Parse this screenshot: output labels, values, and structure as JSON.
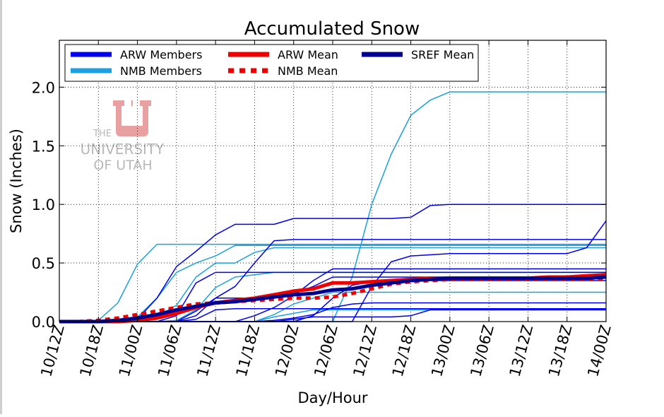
{
  "chart_data": {
    "type": "line",
    "title": "Accumulated Snow",
    "xlabel": "Day/Hour",
    "ylabel": "Snow (Inches)",
    "ylim": [
      0,
      2.4
    ],
    "yticks": [
      "0.0",
      "0.5",
      "1.0",
      "1.5",
      "2.0"
    ],
    "categories": [
      "10/12Z",
      "10/15Z",
      "10/18Z",
      "10/21Z",
      "11/00Z",
      "11/03Z",
      "11/06Z",
      "11/09Z",
      "11/12Z",
      "11/15Z",
      "11/18Z",
      "11/21Z",
      "12/00Z",
      "12/03Z",
      "12/06Z",
      "12/09Z",
      "12/12Z",
      "12/15Z",
      "12/18Z",
      "12/21Z",
      "13/00Z",
      "13/03Z",
      "13/06Z",
      "13/09Z",
      "13/12Z",
      "13/15Z",
      "13/18Z",
      "13/21Z",
      "14/00Z"
    ],
    "xtick_labels": [
      "10/12Z",
      "10/18Z",
      "11/00Z",
      "11/06Z",
      "11/12Z",
      "11/18Z",
      "12/00Z",
      "12/06Z",
      "12/12Z",
      "12/18Z",
      "13/00Z",
      "13/06Z",
      "13/12Z",
      "13/18Z",
      "14/00Z"
    ],
    "grid": true,
    "legend_position": "top-left",
    "colors": {
      "arw_member": "#0000ee",
      "nmb_member": "#1ba0e0",
      "arw_mean": "#ee0000",
      "nmb_mean": "#ee0000",
      "sref_mean": "#000090"
    },
    "legend": [
      {
        "label": "ARW Members",
        "style": "arw_member"
      },
      {
        "label": "ARW Mean",
        "style": "arw_mean"
      },
      {
        "label": "SREF Mean",
        "style": "sref_mean"
      },
      {
        "label": "NMB Members",
        "style": "nmb_member"
      },
      {
        "label": "NMB Mean",
        "style": "nmb_mean"
      }
    ],
    "series": [
      {
        "group": "nmb_member",
        "values": [
          0,
          0,
          0.01,
          0.16,
          0.49,
          0.66,
          0.66,
          0.66,
          0.66,
          0.66,
          0.66,
          0.66,
          0.66,
          0.66,
          0.66,
          0.66,
          0.66,
          0.66,
          0.66,
          0.66,
          0.66,
          0.66,
          0.66,
          0.66,
          0.66,
          0.66,
          0.66,
          0.66,
          0.66
        ]
      },
      {
        "group": "nmb_member",
        "values": [
          0,
          0,
          0,
          0,
          0.04,
          0.2,
          0.42,
          0.5,
          0.56,
          0.65,
          0.65,
          0.65,
          0.65,
          0.65,
          0.65,
          0.65,
          0.65,
          0.65,
          0.65,
          0.65,
          0.65,
          0.65,
          0.65,
          0.65,
          0.65,
          0.65,
          0.65,
          0.65,
          0.65
        ]
      },
      {
        "group": "nmb_member",
        "values": [
          0,
          0,
          0,
          0,
          0,
          0.04,
          0.14,
          0.38,
          0.5,
          0.5,
          0.59,
          0.63,
          0.63,
          0.63,
          0.63,
          0.63,
          0.63,
          0.63,
          0.63,
          0.63,
          0.63,
          0.63,
          0.63,
          0.63,
          0.63,
          0.63,
          0.63,
          0.63,
          0.63
        ]
      },
      {
        "group": "nmb_member",
        "values": [
          0,
          0,
          0,
          0,
          0,
          0,
          0,
          0,
          0,
          0,
          0,
          0,
          0,
          0,
          0,
          0.38,
          1.0,
          1.43,
          1.76,
          1.89,
          1.96,
          1.96,
          1.96,
          1.96,
          1.96,
          1.96,
          1.96,
          1.96,
          1.96
        ]
      },
      {
        "group": "nmb_member",
        "values": [
          0,
          0,
          0,
          0,
          0,
          0,
          0.01,
          0.1,
          0.29,
          0.38,
          0.4,
          0.42,
          0.42,
          0.42,
          0.42,
          0.42,
          0.42,
          0.42,
          0.42,
          0.42,
          0.42,
          0.42,
          0.42,
          0.42,
          0.42,
          0.42,
          0.42,
          0.42,
          0.42
        ]
      },
      {
        "group": "nmb_member",
        "values": [
          0,
          0,
          0,
          0,
          0,
          0,
          0,
          0,
          0,
          0,
          0,
          0.06,
          0.15,
          0.2,
          0.25,
          0.25,
          0.25,
          0.25,
          0.25,
          0.25,
          0.25,
          0.25,
          0.25,
          0.25,
          0.25,
          0.25,
          0.25,
          0.25,
          0.25
        ]
      },
      {
        "group": "nmb_member",
        "values": [
          0,
          0,
          0,
          0,
          0,
          0,
          0,
          0,
          0,
          0,
          0,
          0.04,
          0.07,
          0.1,
          0.1,
          0.1,
          0.1,
          0.1,
          0.1,
          0.1,
          0.1,
          0.1,
          0.1,
          0.1,
          0.1,
          0.1,
          0.1,
          0.1,
          0.1
        ]
      },
      {
        "group": "arw_member",
        "values": [
          0,
          0,
          0,
          0,
          0.02,
          0.2,
          0.47,
          0.6,
          0.74,
          0.83,
          0.83,
          0.83,
          0.88,
          0.88,
          0.88,
          0.88,
          0.88,
          0.88,
          0.89,
          0.99,
          1.0,
          1.0,
          1.0,
          1.0,
          1.0,
          1.0,
          1.0,
          1.0,
          1.0
        ]
      },
      {
        "group": "arw_member",
        "values": [
          0,
          0,
          0,
          0,
          0,
          0,
          0,
          0.05,
          0.2,
          0.3,
          0.5,
          0.69,
          0.7,
          0.7,
          0.7,
          0.7,
          0.7,
          0.7,
          0.7,
          0.7,
          0.7,
          0.7,
          0.7,
          0.7,
          0.7,
          0.7,
          0.7,
          0.7,
          0.7
        ]
      },
      {
        "group": "arw_member",
        "values": [
          0,
          0,
          0,
          0,
          0,
          0,
          0.05,
          0.33,
          0.42,
          0.42,
          0.42,
          0.42,
          0.42,
          0.42,
          0.42,
          0.42,
          0.42,
          0.42,
          0.42,
          0.42,
          0.42,
          0.42,
          0.42,
          0.42,
          0.42,
          0.42,
          0.42,
          0.42,
          0.42
        ]
      },
      {
        "group": "arw_member",
        "values": [
          0,
          0,
          0,
          0,
          0,
          0,
          0,
          0,
          0,
          0,
          0.05,
          0.12,
          0.22,
          0.35,
          0.45,
          0.45,
          0.45,
          0.45,
          0.45,
          0.45,
          0.45,
          0.45,
          0.45,
          0.45,
          0.45,
          0.45,
          0.45,
          0.45,
          0.45
        ]
      },
      {
        "group": "arw_member",
        "values": [
          0,
          0,
          0,
          0,
          0,
          0,
          0,
          0,
          0,
          0,
          0,
          0,
          0,
          0,
          0,
          0,
          0.3,
          0.51,
          0.56,
          0.57,
          0.58,
          0.58,
          0.58,
          0.58,
          0.58,
          0.58,
          0.58,
          0.63,
          0.86
        ]
      },
      {
        "group": "arw_member",
        "values": [
          0,
          0,
          0,
          0,
          0,
          0,
          0,
          0.09,
          0.2,
          0.2,
          0.2,
          0.2,
          0.24,
          0.3,
          0.38,
          0.38,
          0.38,
          0.38,
          0.38,
          0.38,
          0.38,
          0.38,
          0.38,
          0.38,
          0.38,
          0.38,
          0.38,
          0.38,
          0.38
        ]
      },
      {
        "group": "arw_member",
        "values": [
          0,
          0,
          0,
          0,
          0,
          0,
          0,
          0.02,
          0.1,
          0.11,
          0.11,
          0.11,
          0.11,
          0.11,
          0.11,
          0.11,
          0.11,
          0.11,
          0.11,
          0.11,
          0.11,
          0.11,
          0.11,
          0.11,
          0.11,
          0.11,
          0.11,
          0.11,
          0.11
        ]
      },
      {
        "group": "arw_member",
        "values": [
          0,
          0,
          0,
          0,
          0,
          0,
          0,
          0,
          0,
          0,
          0,
          0.01,
          0.03,
          0.06,
          0.12,
          0.15,
          0.16,
          0.16,
          0.16,
          0.16,
          0.16,
          0.16,
          0.16,
          0.16,
          0.16,
          0.16,
          0.16,
          0.16,
          0.16
        ]
      },
      {
        "group": "arw_member",
        "values": [
          0,
          0,
          0,
          0,
          0,
          0,
          0,
          0,
          0,
          0,
          0,
          0,
          0.02,
          0.04,
          0.04,
          0.04,
          0.04,
          0.04,
          0.05,
          0.1,
          0.1,
          0.1,
          0.1,
          0.1,
          0.1,
          0.1,
          0.1,
          0.1,
          0.1
        ]
      },
      {
        "group": "arw_member",
        "values": [
          0,
          0,
          0,
          0,
          0,
          0,
          0,
          0,
          0,
          0,
          0,
          0,
          0,
          0.05,
          0.2,
          0.31,
          0.34,
          0.35,
          0.35,
          0.35,
          0.35,
          0.35,
          0.35,
          0.35,
          0.35,
          0.35,
          0.35,
          0.35,
          0.35
        ]
      },
      {
        "group": "nmb_mean",
        "values": [
          0,
          0,
          0.01,
          0.03,
          0.06,
          0.09,
          0.12,
          0.15,
          0.16,
          0.17,
          0.18,
          0.19,
          0.2,
          0.2,
          0.21,
          0.24,
          0.28,
          0.32,
          0.34,
          0.35,
          0.36,
          0.36,
          0.36,
          0.36,
          0.36,
          0.36,
          0.36,
          0.36,
          0.36
        ]
      },
      {
        "group": "arw_mean",
        "values": [
          0,
          0,
          0,
          0,
          0.01,
          0.03,
          0.07,
          0.12,
          0.16,
          0.18,
          0.2,
          0.23,
          0.26,
          0.28,
          0.33,
          0.33,
          0.34,
          0.35,
          0.36,
          0.37,
          0.37,
          0.37,
          0.37,
          0.37,
          0.37,
          0.38,
          0.38,
          0.39,
          0.4
        ]
      },
      {
        "group": "sref_mean",
        "values": [
          0,
          0,
          0,
          0.01,
          0.03,
          0.06,
          0.1,
          0.13,
          0.16,
          0.17,
          0.19,
          0.21,
          0.23,
          0.24,
          0.27,
          0.28,
          0.31,
          0.33,
          0.35,
          0.36,
          0.37,
          0.37,
          0.37,
          0.37,
          0.37,
          0.37,
          0.37,
          0.37,
          0.38
        ]
      }
    ]
  },
  "watermark": {
    "line1": "THE",
    "line2": "UNIVERSITY",
    "line3": "OF UTAH",
    "logo_color": "#e8a0a0",
    "text_color": "#b8b8b8"
  }
}
